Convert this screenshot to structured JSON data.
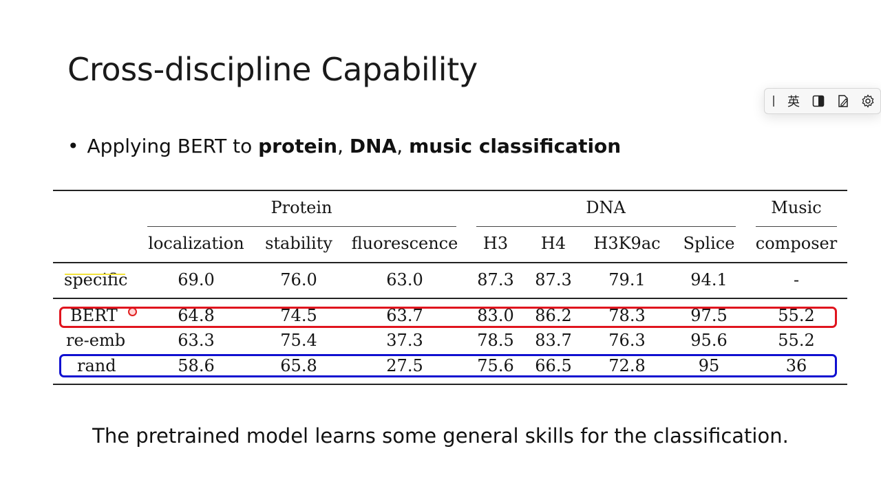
{
  "slide": {
    "title": "Cross-discipline Capability",
    "bullet": {
      "dot": "•",
      "prefix": "Applying BERT to ",
      "term1": "protein",
      "sep1": ", ",
      "term2": "DNA",
      "sep2": ", ",
      "term3": "music classification"
    },
    "caption": "The pretrained model learns some general skills for the classification."
  },
  "ime_toolbar": {
    "language_label": "英",
    "icons": [
      "grip-icon",
      "half-square-icon",
      "pen-doc-icon",
      "gear-icon"
    ]
  },
  "table": {
    "groups": [
      "Protein",
      "DNA",
      "Music"
    ],
    "columns": [
      "localization",
      "stability",
      "fluorescence",
      "H3",
      "H4",
      "H3K9ac",
      "Splice",
      "composer"
    ],
    "rows": [
      {
        "label": "specific",
        "values": [
          "69.0",
          "76.0",
          "63.0",
          "87.3",
          "87.3",
          "79.1",
          "94.1",
          "-"
        ]
      },
      {
        "label": "BERT",
        "values": [
          "64.8",
          "74.5",
          "63.7",
          "83.0",
          "86.2",
          "78.3",
          "97.5",
          "55.2"
        ]
      },
      {
        "label": "re-emb",
        "values": [
          "63.3",
          "75.4",
          "37.3",
          "78.5",
          "83.7",
          "76.3",
          "95.6",
          "55.2"
        ]
      },
      {
        "label": "rand",
        "values": [
          "58.6",
          "65.8",
          "27.5",
          "75.6",
          "66.5",
          "72.8",
          "95",
          "36"
        ]
      }
    ],
    "highlights": {
      "bert_row_color": "#e0141e",
      "rand_row_color": "#1010d0"
    }
  }
}
